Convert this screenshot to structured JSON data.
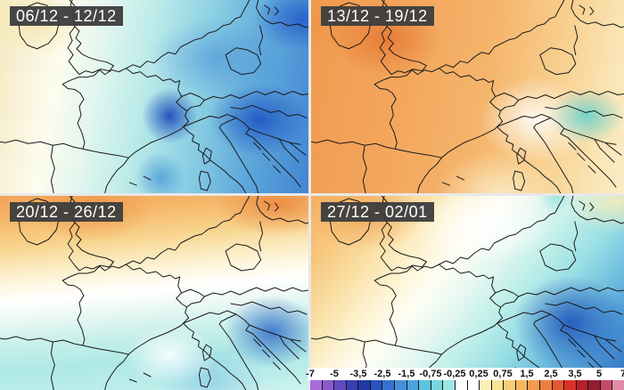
{
  "panels": [
    {
      "date_range": "06/12 - 12/12"
    },
    {
      "date_range": "13/12 - 19/12"
    },
    {
      "date_range": "20/12 - 26/12"
    },
    {
      "date_range": "27/12 - 02/01"
    }
  ],
  "legend": {
    "tick_labels": [
      "-7",
      "-5",
      "-3,5",
      "-2,5",
      "-1,5",
      "-0,75",
      "-0,25",
      "0,25",
      "0,75",
      "1,5",
      "2,5",
      "3,5",
      "5",
      "7"
    ],
    "cell_colors": [
      "#A76BD8",
      "#8A5ACC",
      "#5F4BC2",
      "#3A3FB4",
      "#2238A8",
      "#2B53C0",
      "#3571CE",
      "#458FDB",
      "#4BA3DF",
      "#5CC2DF",
      "#76D5DC",
      "#9AE8E2",
      "#FFFFFF",
      "#FFFFFF",
      "#FBF1B8",
      "#F9E392",
      "#F7CD77",
      "#F5B660",
      "#F29C4D",
      "#EE7E3C",
      "#E6582F",
      "#D93128",
      "#B72029",
      "#921C30",
      "#C44A67",
      "#E18CA9"
    ]
  },
  "colors": {
    "date_label_bg": "#3e3e3e",
    "date_label_text": "#ffffff",
    "legend_strip_bg": "#ffffff"
  }
}
